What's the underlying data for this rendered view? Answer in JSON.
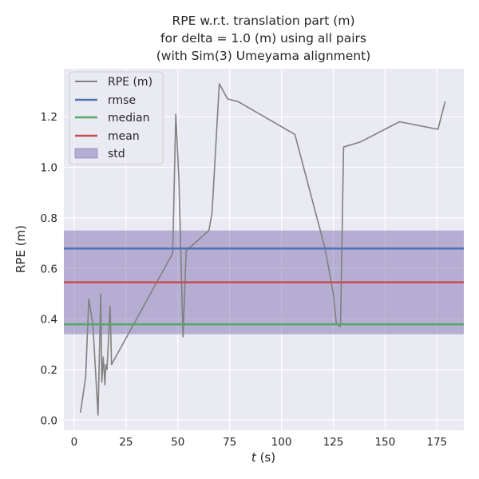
{
  "chart_data": {
    "type": "line",
    "title_lines": [
      "RPE w.r.t. translation part (m)",
      "for delta = 1.0 (m) using all pairs",
      "(with Sim(3) Umeyama alignment)"
    ],
    "xlabel_italic": "t",
    "xlabel_unit": " (s)",
    "ylabel": "RPE (m)",
    "xlim": [
      -5,
      188
    ],
    "ylim": [
      -0.04,
      1.39
    ],
    "xticks": [
      0,
      25,
      50,
      75,
      100,
      125,
      150,
      175
    ],
    "xtick_labels": [
      "0",
      "25",
      "50",
      "75",
      "100",
      "125",
      "150",
      "175"
    ],
    "yticks": [
      0.0,
      0.2,
      0.4,
      0.6,
      0.8,
      1.0,
      1.2
    ],
    "ytick_labels": [
      "0.0",
      "0.2",
      "0.4",
      "0.6",
      "0.8",
      "1.0",
      "1.2"
    ],
    "grid": true,
    "legend_position": "top-left",
    "series": [
      {
        "name": "RPE (m)",
        "color": "#808080",
        "x": [
          3,
          5.5,
          7,
          9,
          11.5,
          12.8,
          13.3,
          14,
          14.8,
          15.2,
          15.8,
          17.3,
          18,
          47.5,
          49,
          50.5,
          52.5,
          54,
          65,
          66.5,
          70,
          74,
          79,
          106.5,
          121,
          125,
          126.5,
          128.5,
          130,
          138,
          157,
          175.5,
          179
        ],
        "y": [
          0.03,
          0.17,
          0.48,
          0.38,
          0.02,
          0.5,
          0.15,
          0.25,
          0.14,
          0.22,
          0.2,
          0.45,
          0.22,
          0.66,
          1.21,
          0.95,
          0.33,
          0.67,
          0.75,
          0.82,
          1.33,
          1.27,
          1.26,
          1.13,
          0.68,
          0.5,
          0.38,
          0.37,
          1.08,
          1.1,
          1.18,
          1.15,
          1.26
        ]
      }
    ],
    "stats": {
      "rmse": {
        "name": "rmse",
        "value": 0.679,
        "color": "#4c72b0"
      },
      "median": {
        "name": "median",
        "value": 0.379,
        "color": "#55a868"
      },
      "mean": {
        "name": "mean",
        "value": 0.545,
        "color": "#c44e52"
      },
      "std": {
        "name": "std",
        "low": 0.34,
        "high": 0.75,
        "color": "#8172b2"
      }
    },
    "legend": [
      "RPE (m)",
      "rmse",
      "median",
      "mean",
      "std"
    ]
  }
}
